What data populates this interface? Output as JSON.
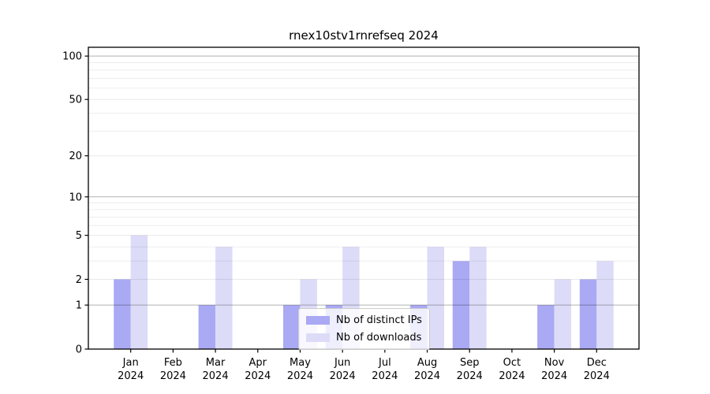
{
  "title": "rnex10stv1rnrefseq 2024",
  "chart_data": {
    "type": "bar",
    "x_categories": [
      "Jan",
      "Feb",
      "Mar",
      "Apr",
      "May",
      "Jun",
      "Jul",
      "Aug",
      "Sep",
      "Oct",
      "Nov",
      "Dec"
    ],
    "x_year": "2024",
    "series": [
      {
        "name": "Nb of distinct IPs",
        "color": "#a9a9f4",
        "values": [
          2,
          0,
          1,
          0,
          1,
          1,
          0,
          1,
          3,
          0,
          1,
          2
        ]
      },
      {
        "name": "Nb of downloads",
        "color": "#dcdcf8",
        "values": [
          5,
          0,
          4,
          0,
          2,
          4,
          0,
          4,
          4,
          0,
          2,
          3
        ]
      }
    ],
    "y_ticks": [
      0,
      1,
      2,
      5,
      10,
      20,
      50,
      100
    ],
    "y_minor_ticks": [
      3,
      4,
      6,
      7,
      8,
      9,
      30,
      40,
      60,
      70,
      80,
      90
    ],
    "y_scale": "log1p",
    "ylim": [
      0,
      115
    ],
    "grid": true,
    "legend_position": "lower center"
  }
}
